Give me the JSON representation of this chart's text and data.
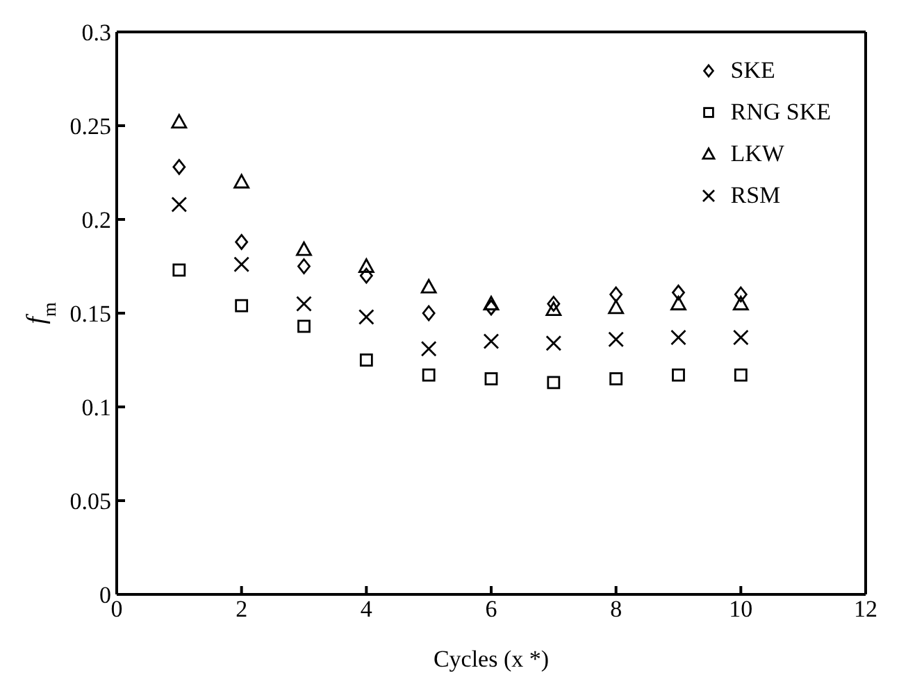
{
  "chart_data": {
    "type": "scatter",
    "xlabel": "Cycles (x *)",
    "ylabel": "f$_{m}$",
    "x": [
      1,
      2,
      3,
      4,
      5,
      6,
      7,
      8,
      9,
      10
    ],
    "series": [
      {
        "name": "SKE",
        "color": "#000000",
        "marker": "diamond",
        "values": [
          0.228,
          0.188,
          0.175,
          0.17,
          0.15,
          0.153,
          0.155,
          0.16,
          0.161,
          0.16
        ]
      },
      {
        "name": "RNG SKE",
        "color": "#000000",
        "marker": "square",
        "values": [
          0.173,
          0.154,
          0.143,
          0.125,
          0.117,
          0.115,
          0.113,
          0.115,
          0.117,
          0.117
        ]
      },
      {
        "name": "LKW",
        "color": "#000000",
        "marker": "triangle",
        "values": [
          0.252,
          0.22,
          0.184,
          0.175,
          0.164,
          0.155,
          0.152,
          0.153,
          0.155,
          0.155
        ]
      },
      {
        "name": "RSM",
        "color": "#000000",
        "marker": "cross",
        "values": [
          0.208,
          0.176,
          0.155,
          0.148,
          0.131,
          0.135,
          0.134,
          0.136,
          0.137,
          0.137
        ]
      }
    ],
    "xlim": [
      0,
      12
    ],
    "xticks": [
      0,
      2,
      4,
      6,
      8,
      10,
      12
    ],
    "ylim": [
      0,
      0.3
    ],
    "yticks": [
      0,
      0.05,
      0.1,
      0.15,
      0.2,
      0.25,
      0.3
    ],
    "grid": false,
    "legend": "top right"
  }
}
